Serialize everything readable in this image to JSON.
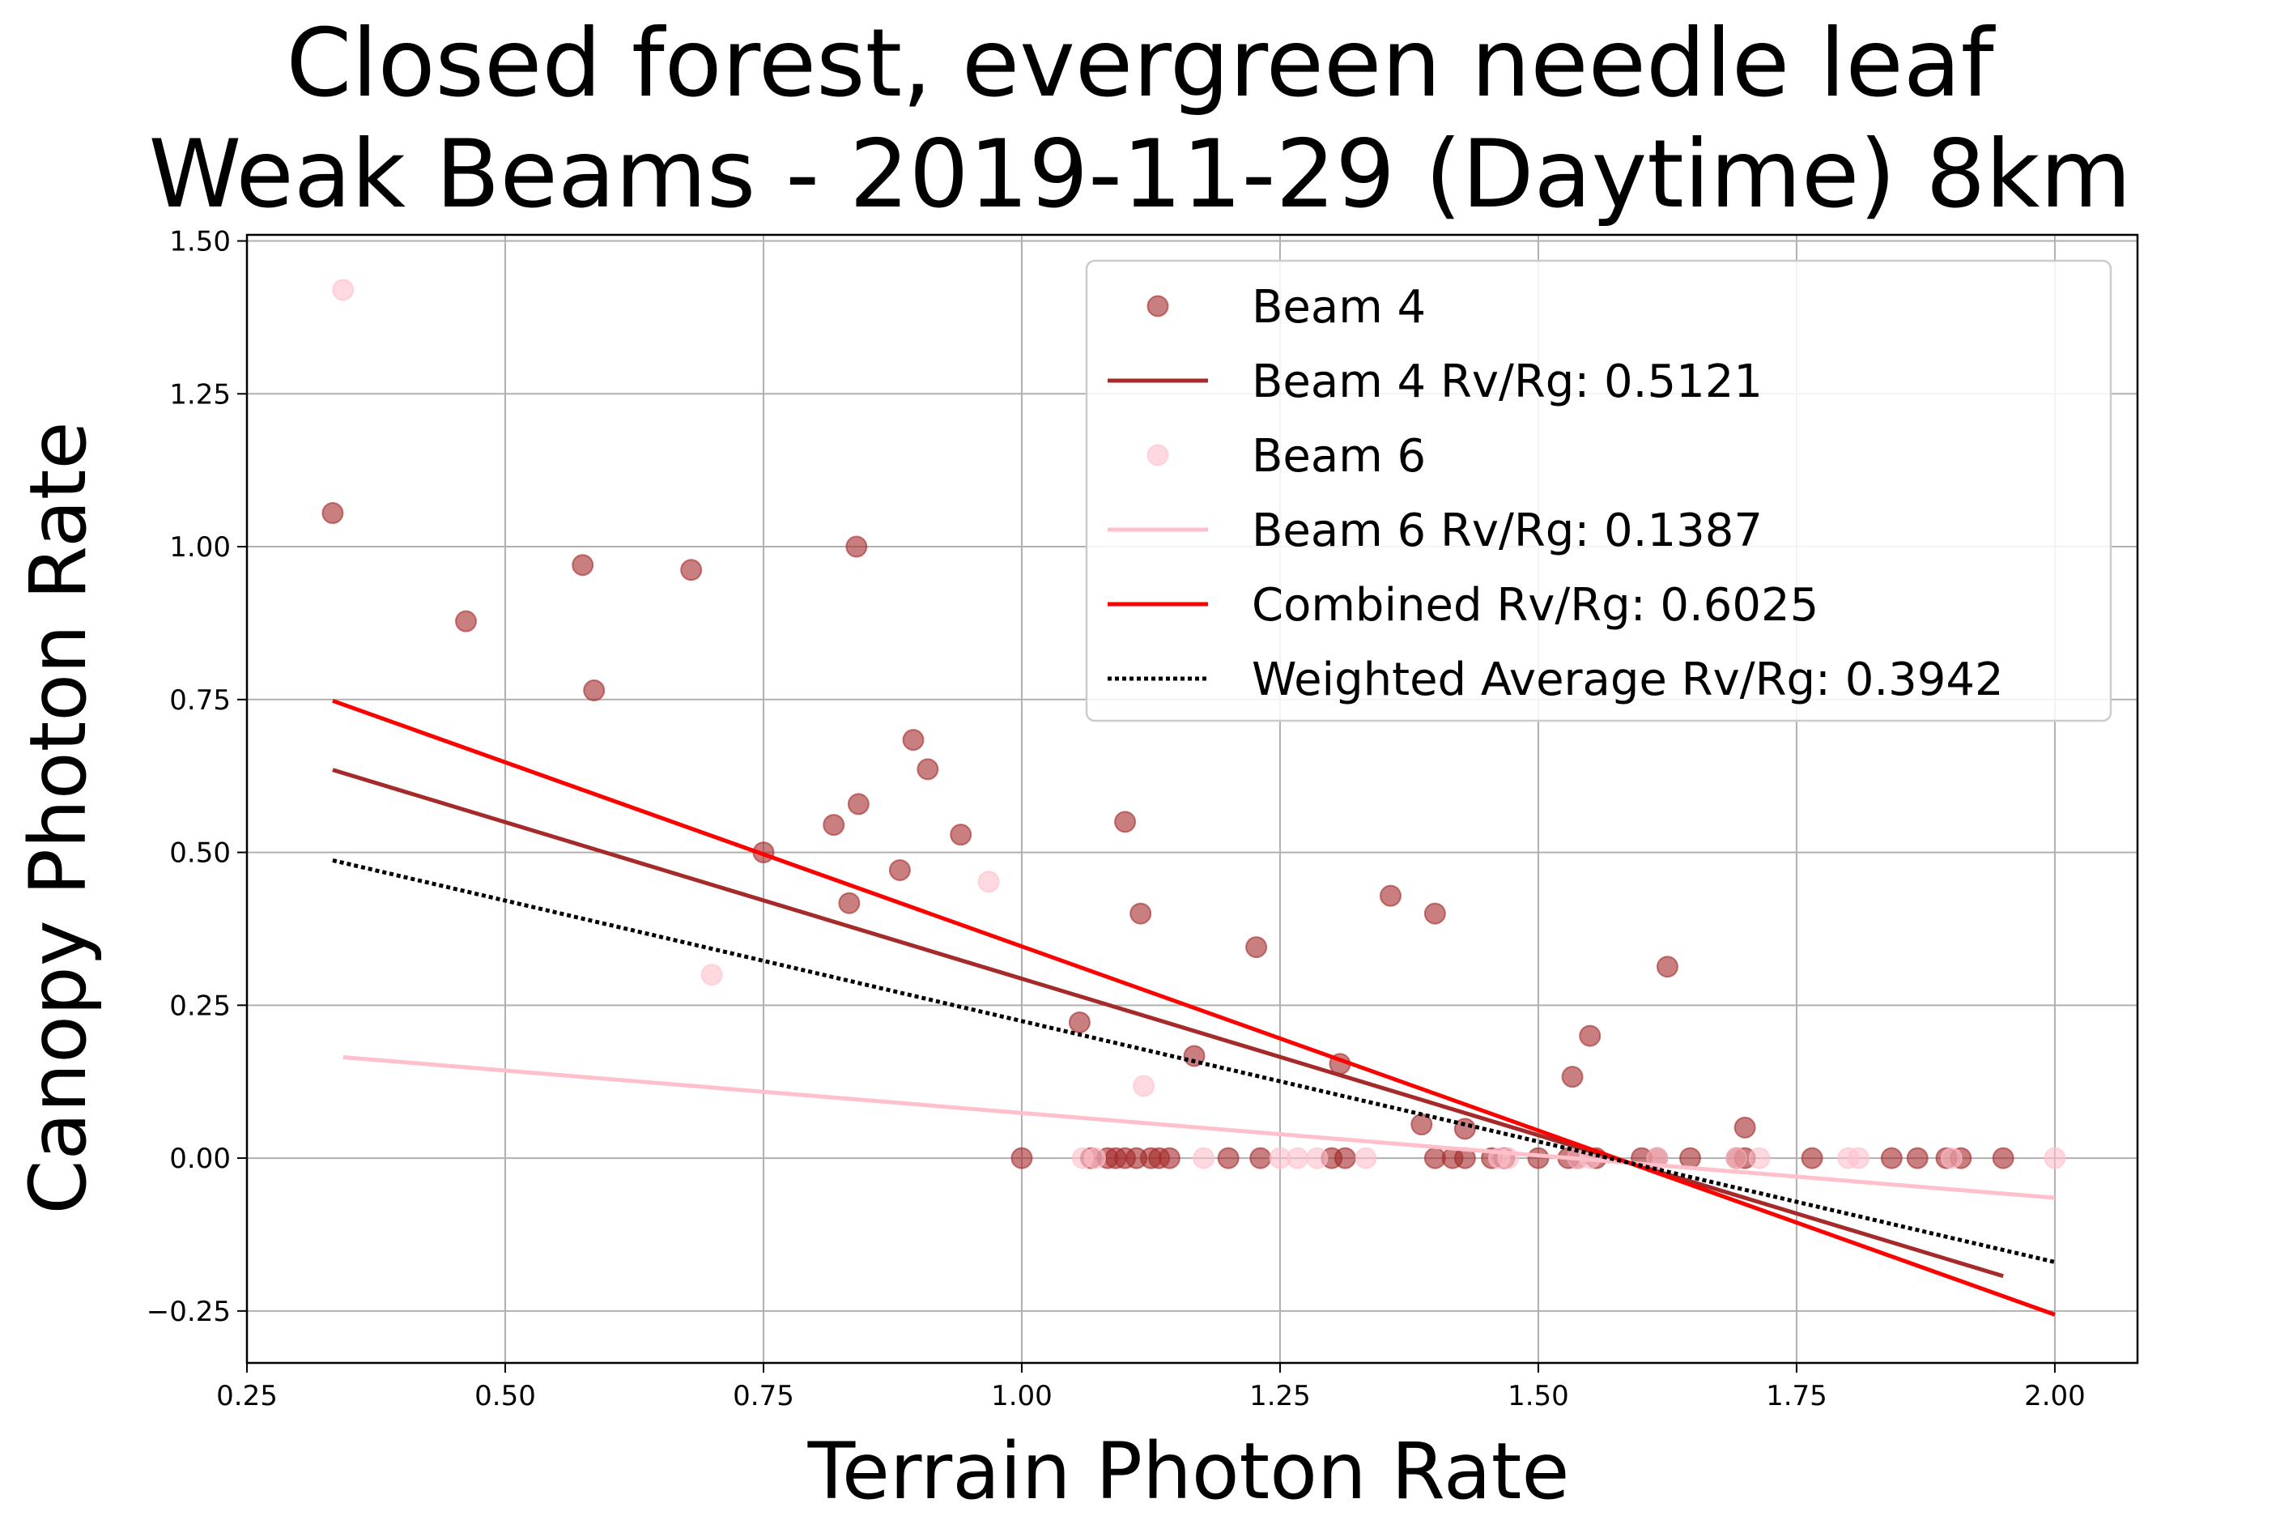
{
  "chart_data": {
    "type": "scatter",
    "title": "Closed forest, evergreen needle leaf",
    "subtitle": "Weak Beams - 2019-11-29 (Daytime) 8km",
    "xlabel": "Terrain Photon Rate",
    "ylabel": "Canopy Photon Rate",
    "xlim": [
      0.25,
      2.08
    ],
    "ylim": [
      -0.335,
      1.51
    ],
    "xticks": [
      0.25,
      0.5,
      0.75,
      1.0,
      1.25,
      1.5,
      1.75,
      2.0
    ],
    "xtick_labels": [
      "0.25",
      "0.50",
      "0.75",
      "1.00",
      "1.25",
      "1.50",
      "1.75",
      "2.00"
    ],
    "yticks": [
      -0.25,
      0.0,
      0.25,
      0.5,
      0.75,
      1.0,
      1.25,
      1.5
    ],
    "ytick_labels": [
      "−0.25",
      "0.00",
      "0.25",
      "0.50",
      "0.75",
      "1.00",
      "1.25",
      "1.50"
    ],
    "grid": true,
    "legend_position": "top-right",
    "series": [
      {
        "name": "Beam 4",
        "kind": "scatter",
        "color": "#a52a2a",
        "opacity": 0.6,
        "points": [
          [
            0.333,
            1.055
          ],
          [
            0.462,
            0.878
          ],
          [
            0.575,
            0.97
          ],
          [
            0.586,
            0.765
          ],
          [
            0.68,
            0.962
          ],
          [
            0.75,
            0.5
          ],
          [
            0.818,
            0.545
          ],
          [
            0.833,
            0.417
          ],
          [
            0.84,
            1.0
          ],
          [
            0.842,
            0.579
          ],
          [
            0.882,
            0.471
          ],
          [
            0.895,
            0.684
          ],
          [
            0.909,
            0.636
          ],
          [
            0.941,
            0.529
          ],
          [
            1.0,
            0.0
          ],
          [
            1.056,
            0.222
          ],
          [
            1.067,
            0.0
          ],
          [
            1.083,
            0.0
          ],
          [
            1.091,
            0.0
          ],
          [
            1.1,
            0.55
          ],
          [
            1.1,
            0.0
          ],
          [
            1.111,
            0.0
          ],
          [
            1.115,
            0.4
          ],
          [
            1.125,
            0.0
          ],
          [
            1.133,
            0.0
          ],
          [
            1.143,
            0.0
          ],
          [
            1.167,
            0.167
          ],
          [
            1.2,
            0.0
          ],
          [
            1.227,
            0.345
          ],
          [
            1.231,
            0.0
          ],
          [
            1.3,
            0.0
          ],
          [
            1.308,
            0.154
          ],
          [
            1.313,
            0.0
          ],
          [
            1.357,
            0.429
          ],
          [
            1.387,
            0.055
          ],
          [
            1.4,
            0.4
          ],
          [
            1.4,
            0.0
          ],
          [
            1.417,
            0.0
          ],
          [
            1.429,
            0.048
          ],
          [
            1.429,
            0.0
          ],
          [
            1.455,
            0.0
          ],
          [
            1.467,
            0.0
          ],
          [
            1.5,
            0.0
          ],
          [
            1.529,
            0.0
          ],
          [
            1.533,
            0.133
          ],
          [
            1.538,
            0.0
          ],
          [
            1.55,
            0.2
          ],
          [
            1.556,
            0.0
          ],
          [
            1.6,
            0.0
          ],
          [
            1.615,
            0.0
          ],
          [
            1.625,
            0.313
          ],
          [
            1.647,
            0.0
          ],
          [
            1.692,
            0.0
          ],
          [
            1.7,
            0.05
          ],
          [
            1.7,
            0.0
          ],
          [
            1.765,
            0.0
          ],
          [
            1.842,
            0.0
          ],
          [
            1.867,
            0.0
          ],
          [
            1.895,
            0.0
          ],
          [
            1.909,
            0.0
          ],
          [
            1.95,
            0.0
          ]
        ]
      },
      {
        "name": "Beam 4 Rv/Rg: 0.5121",
        "kind": "line",
        "color": "#a52a2a",
        "points": [
          [
            0.333,
            0.635
          ],
          [
            1.95,
            -0.193
          ]
        ]
      },
      {
        "name": "Beam 6",
        "kind": "scatter",
        "color": "#ffc0cb",
        "opacity": 0.6,
        "points": [
          [
            0.343,
            1.42
          ],
          [
            0.7,
            0.3
          ],
          [
            0.968,
            0.452
          ],
          [
            1.059,
            0.0
          ],
          [
            1.071,
            0.0
          ],
          [
            1.118,
            0.118
          ],
          [
            1.176,
            0.0
          ],
          [
            1.25,
            0.0
          ],
          [
            1.267,
            0.0
          ],
          [
            1.286,
            0.0
          ],
          [
            1.333,
            0.0
          ],
          [
            1.462,
            0.0
          ],
          [
            1.471,
            0.0
          ],
          [
            1.538,
            0.0
          ],
          [
            1.55,
            0.0
          ],
          [
            1.615,
            0.0
          ],
          [
            1.692,
            0.0
          ],
          [
            1.714,
            0.0
          ],
          [
            1.8,
            0.0
          ],
          [
            1.81,
            0.0
          ],
          [
            1.9,
            0.0
          ],
          [
            2.0,
            0.0
          ]
        ]
      },
      {
        "name": "Beam 6 Rv/Rg: 0.1387",
        "kind": "line",
        "color": "#ffc0cb",
        "points": [
          [
            0.343,
            0.165
          ],
          [
            2.0,
            -0.065
          ]
        ]
      },
      {
        "name": "Combined Rv/Rg: 0.6025",
        "kind": "line",
        "color": "#ff0000",
        "points": [
          [
            0.333,
            0.748
          ],
          [
            2.0,
            -0.256
          ]
        ]
      },
      {
        "name": "Weighted Average Rv/Rg: 0.3942",
        "kind": "dotted-line",
        "color": "#000000",
        "points": [
          [
            0.333,
            0.487
          ],
          [
            2.0,
            -0.17
          ]
        ]
      }
    ]
  }
}
